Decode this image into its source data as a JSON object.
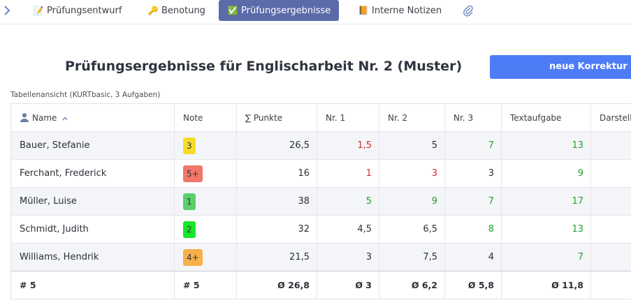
{
  "tabs": [
    {
      "label": "Prüfungsentwurf",
      "icon": "memo-icon",
      "glyph": "📝"
    },
    {
      "label": "Benotung",
      "icon": "key-icon",
      "glyph": "🔑"
    },
    {
      "label": "Prüfungsergebnisse",
      "icon": "check-box-icon",
      "glyph": "✅",
      "active": true
    },
    {
      "label": "Interne Notizen",
      "icon": "notebook-icon",
      "glyph": "📙"
    }
  ],
  "page": {
    "title": "Prüfungsergebnisse für Englischarbeit Nr. 2 (Muster)",
    "cta_label": "neue Korrektur in",
    "subcaption": "Tabellenansicht (KURTbasic, 3 Aufgaben)"
  },
  "table": {
    "columns": [
      "Name",
      "Note",
      "∑ Punkte",
      "Nr. 1",
      "Nr. 2",
      "Nr. 3",
      "Textaufgabe",
      "Darstell"
    ],
    "rows": [
      {
        "name": "Bauer, Stefanie",
        "grade": "3",
        "grade_color": "#f5dc2a",
        "points": "26,5",
        "n1": "1,5",
        "n1_c": "red",
        "n2": "5",
        "n2_c": "dark",
        "n3": "7",
        "n3_c": "green",
        "text": "13",
        "text_c": "green"
      },
      {
        "name": "Ferchant, Frederick",
        "grade": "5+",
        "grade_color": "#f0776a",
        "points": "16",
        "n1": "1",
        "n1_c": "red",
        "n2": "3",
        "n2_c": "red",
        "n3": "3",
        "n3_c": "dark",
        "text": "9",
        "text_c": "green"
      },
      {
        "name": "Müller, Luise",
        "grade": "1",
        "grade_color": "#5ccf6c",
        "points": "38",
        "n1": "5",
        "n1_c": "green",
        "n2": "9",
        "n2_c": "green",
        "n3": "7",
        "n3_c": "green",
        "text": "17",
        "text_c": "green"
      },
      {
        "name": "Schmidt, Judith",
        "grade": "2",
        "grade_color": "#19e62a",
        "points": "32",
        "n1": "4,5",
        "n1_c": "dark",
        "n2": "6,5",
        "n2_c": "dark",
        "n3": "8",
        "n3_c": "green",
        "text": "13",
        "text_c": "green"
      },
      {
        "name": "Williams, Hendrik",
        "grade": "4+",
        "grade_color": "#f7b04a",
        "points": "21,5",
        "n1": "3",
        "n1_c": "dark",
        "n2": "7,5",
        "n2_c": "dark",
        "n3": "4",
        "n3_c": "dark",
        "text": "7",
        "text_c": "green"
      }
    ],
    "footer": {
      "name": "# 5",
      "grade": "# 5",
      "points": "Ø 26,8",
      "n1": "Ø 3",
      "n2": "Ø 6,2",
      "n3": "Ø 5,8",
      "text": "Ø 11,8"
    }
  }
}
